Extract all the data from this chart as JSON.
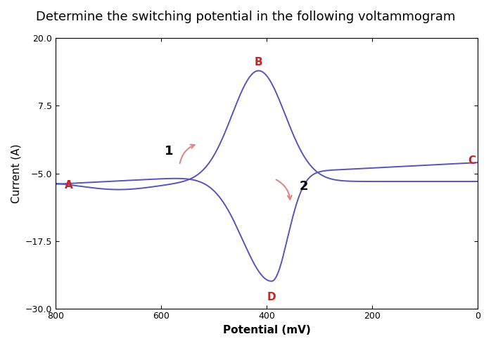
{
  "title": "Determine the switching potential in the following voltammogram",
  "xlabel": "Potential (mV)",
  "ylabel": "Current (A)",
  "xlim": [
    800,
    0
  ],
  "ylim": [
    -30,
    20
  ],
  "yticks": [
    -30.0,
    -17.5,
    -5.0,
    7.5,
    20.0
  ],
  "xticks": [
    800.0,
    600.0,
    400.0,
    200.0,
    0.0
  ],
  "curve_color": "#5555bb",
  "label_color": "#cc2222",
  "arrow_color": "#dd8888",
  "background_color": "#ffffff",
  "title_fontsize": 13,
  "axis_label_fontsize": 11,
  "tick_fontsize": 9,
  "figsize": [
    6.98,
    4.92
  ],
  "dpi": 100
}
